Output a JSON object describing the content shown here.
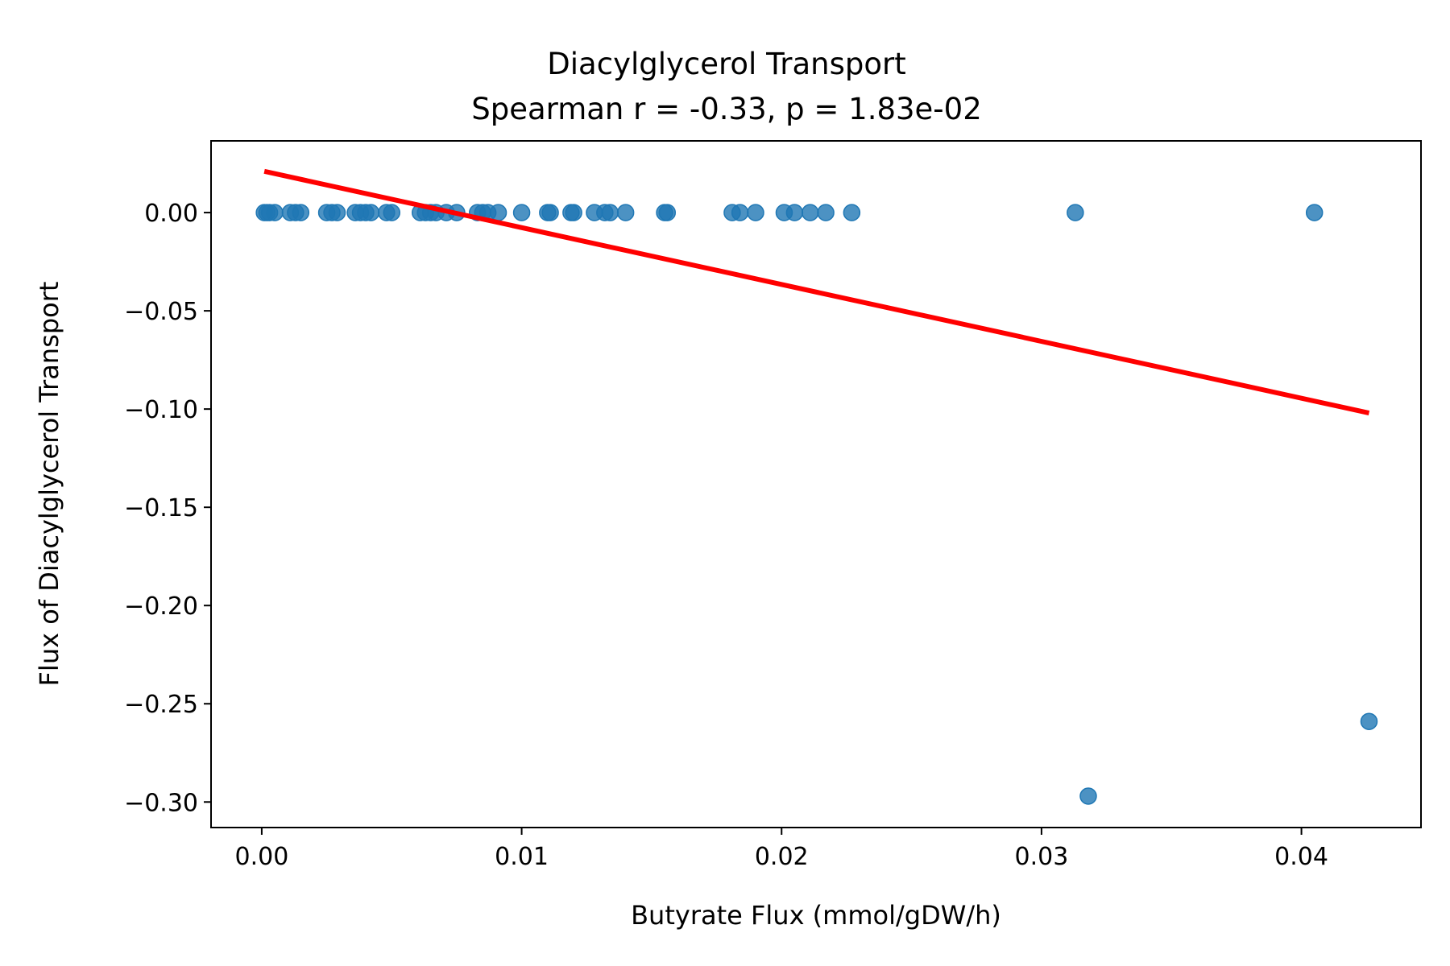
{
  "chart_data": {
    "type": "scatter",
    "title": "Diacylglycerol Transport",
    "subtitle": "Spearman r = -0.33, p = 1.83e-02",
    "xlabel": "Butyrate Flux (mmol/gDW/h)",
    "ylabel": "Flux of Diacylglycerol Transport",
    "xlim": [
      -0.00195,
      0.0446
    ],
    "ylim": [
      -0.313,
      0.0365
    ],
    "xticks": [
      0.0,
      0.01,
      0.02,
      0.03,
      0.04
    ],
    "xtick_labels": [
      "0.00",
      "0.01",
      "0.02",
      "0.03",
      "0.04"
    ],
    "yticks": [
      0.0,
      -0.05,
      -0.1,
      -0.15,
      -0.2,
      -0.25,
      -0.3
    ],
    "ytick_labels": [
      "0.00",
      "−0.05",
      "−0.10",
      "−0.15",
      "−0.20",
      "−0.25",
      "−0.30"
    ],
    "grid": false,
    "series": [
      {
        "kind": "points",
        "color": "#1f77b4",
        "x": [
          0.0001,
          0.0002,
          0.0003,
          0.0005,
          0.0011,
          0.0013,
          0.0015,
          0.0025,
          0.0027,
          0.0029,
          0.0036,
          0.0038,
          0.004,
          0.0042,
          0.0048,
          0.005,
          0.0061,
          0.0063,
          0.0065,
          0.0067,
          0.0071,
          0.0075,
          0.0083,
          0.0085,
          0.0087,
          0.0091,
          0.01,
          0.011,
          0.0111,
          0.0119,
          0.012,
          0.0128,
          0.0132,
          0.0134,
          0.014,
          0.0155,
          0.0156,
          0.0181,
          0.0184,
          0.019,
          0.0201,
          0.0205,
          0.0211,
          0.0217,
          0.0227,
          0.0313,
          0.0405,
          0.0318,
          0.0426
        ],
        "y": [
          0,
          0,
          0,
          0,
          0,
          0,
          0,
          0,
          0,
          0,
          0,
          0,
          0,
          0,
          0,
          0,
          0,
          0,
          0,
          0,
          0,
          0,
          0,
          0,
          0,
          0,
          0,
          0,
          0,
          0,
          0,
          0,
          0,
          0,
          0,
          0,
          0,
          0,
          0,
          0,
          0,
          0,
          0,
          0,
          0,
          0,
          0,
          -0.297,
          -0.259
        ]
      },
      {
        "kind": "regression-line",
        "color": "#ff0000",
        "x": [
          0.0001,
          0.0426
        ],
        "y": [
          0.021,
          -0.102
        ]
      }
    ]
  }
}
